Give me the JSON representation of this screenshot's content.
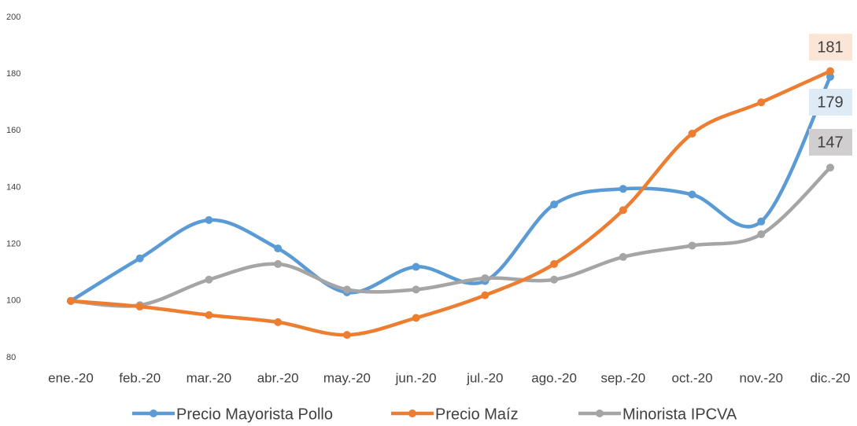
{
  "chart_data": {
    "type": "line",
    "categories": [
      "ene.-20",
      "feb.-20",
      "mar.-20",
      "abr.-20",
      "may.-20",
      "jun.-20",
      "jul.-20",
      "ago.-20",
      "sep.-20",
      "oct.-20",
      "nov.-20",
      "dic.-20"
    ],
    "series": [
      {
        "name": "Precio Mayorista Pollo",
        "color": "#5b9bd5",
        "label_bg": "#deebf7",
        "values": [
          100,
          115,
          128.5,
          118.5,
          103,
          112,
          107,
          134,
          139.5,
          137.5,
          128,
          179
        ]
      },
      {
        "name": "Precio Maíz",
        "color": "#ed7d31",
        "label_bg": "#fbe5d6",
        "values": [
          100,
          98,
          95,
          92.5,
          88,
          94,
          102,
          113,
          132,
          159,
          170,
          181
        ]
      },
      {
        "name": "Minorista IPCVA",
        "color": "#a5a5a5",
        "label_bg": "#d0cece",
        "values": [
          100,
          98.5,
          107.5,
          113,
          104,
          104,
          108,
          107.5,
          115.5,
          119.5,
          123.5,
          147
        ]
      }
    ],
    "ylim": [
      80,
      200
    ],
    "yticks": [
      80,
      100,
      120,
      140,
      160,
      180,
      200
    ],
    "grid": false,
    "legend": "bottom"
  }
}
